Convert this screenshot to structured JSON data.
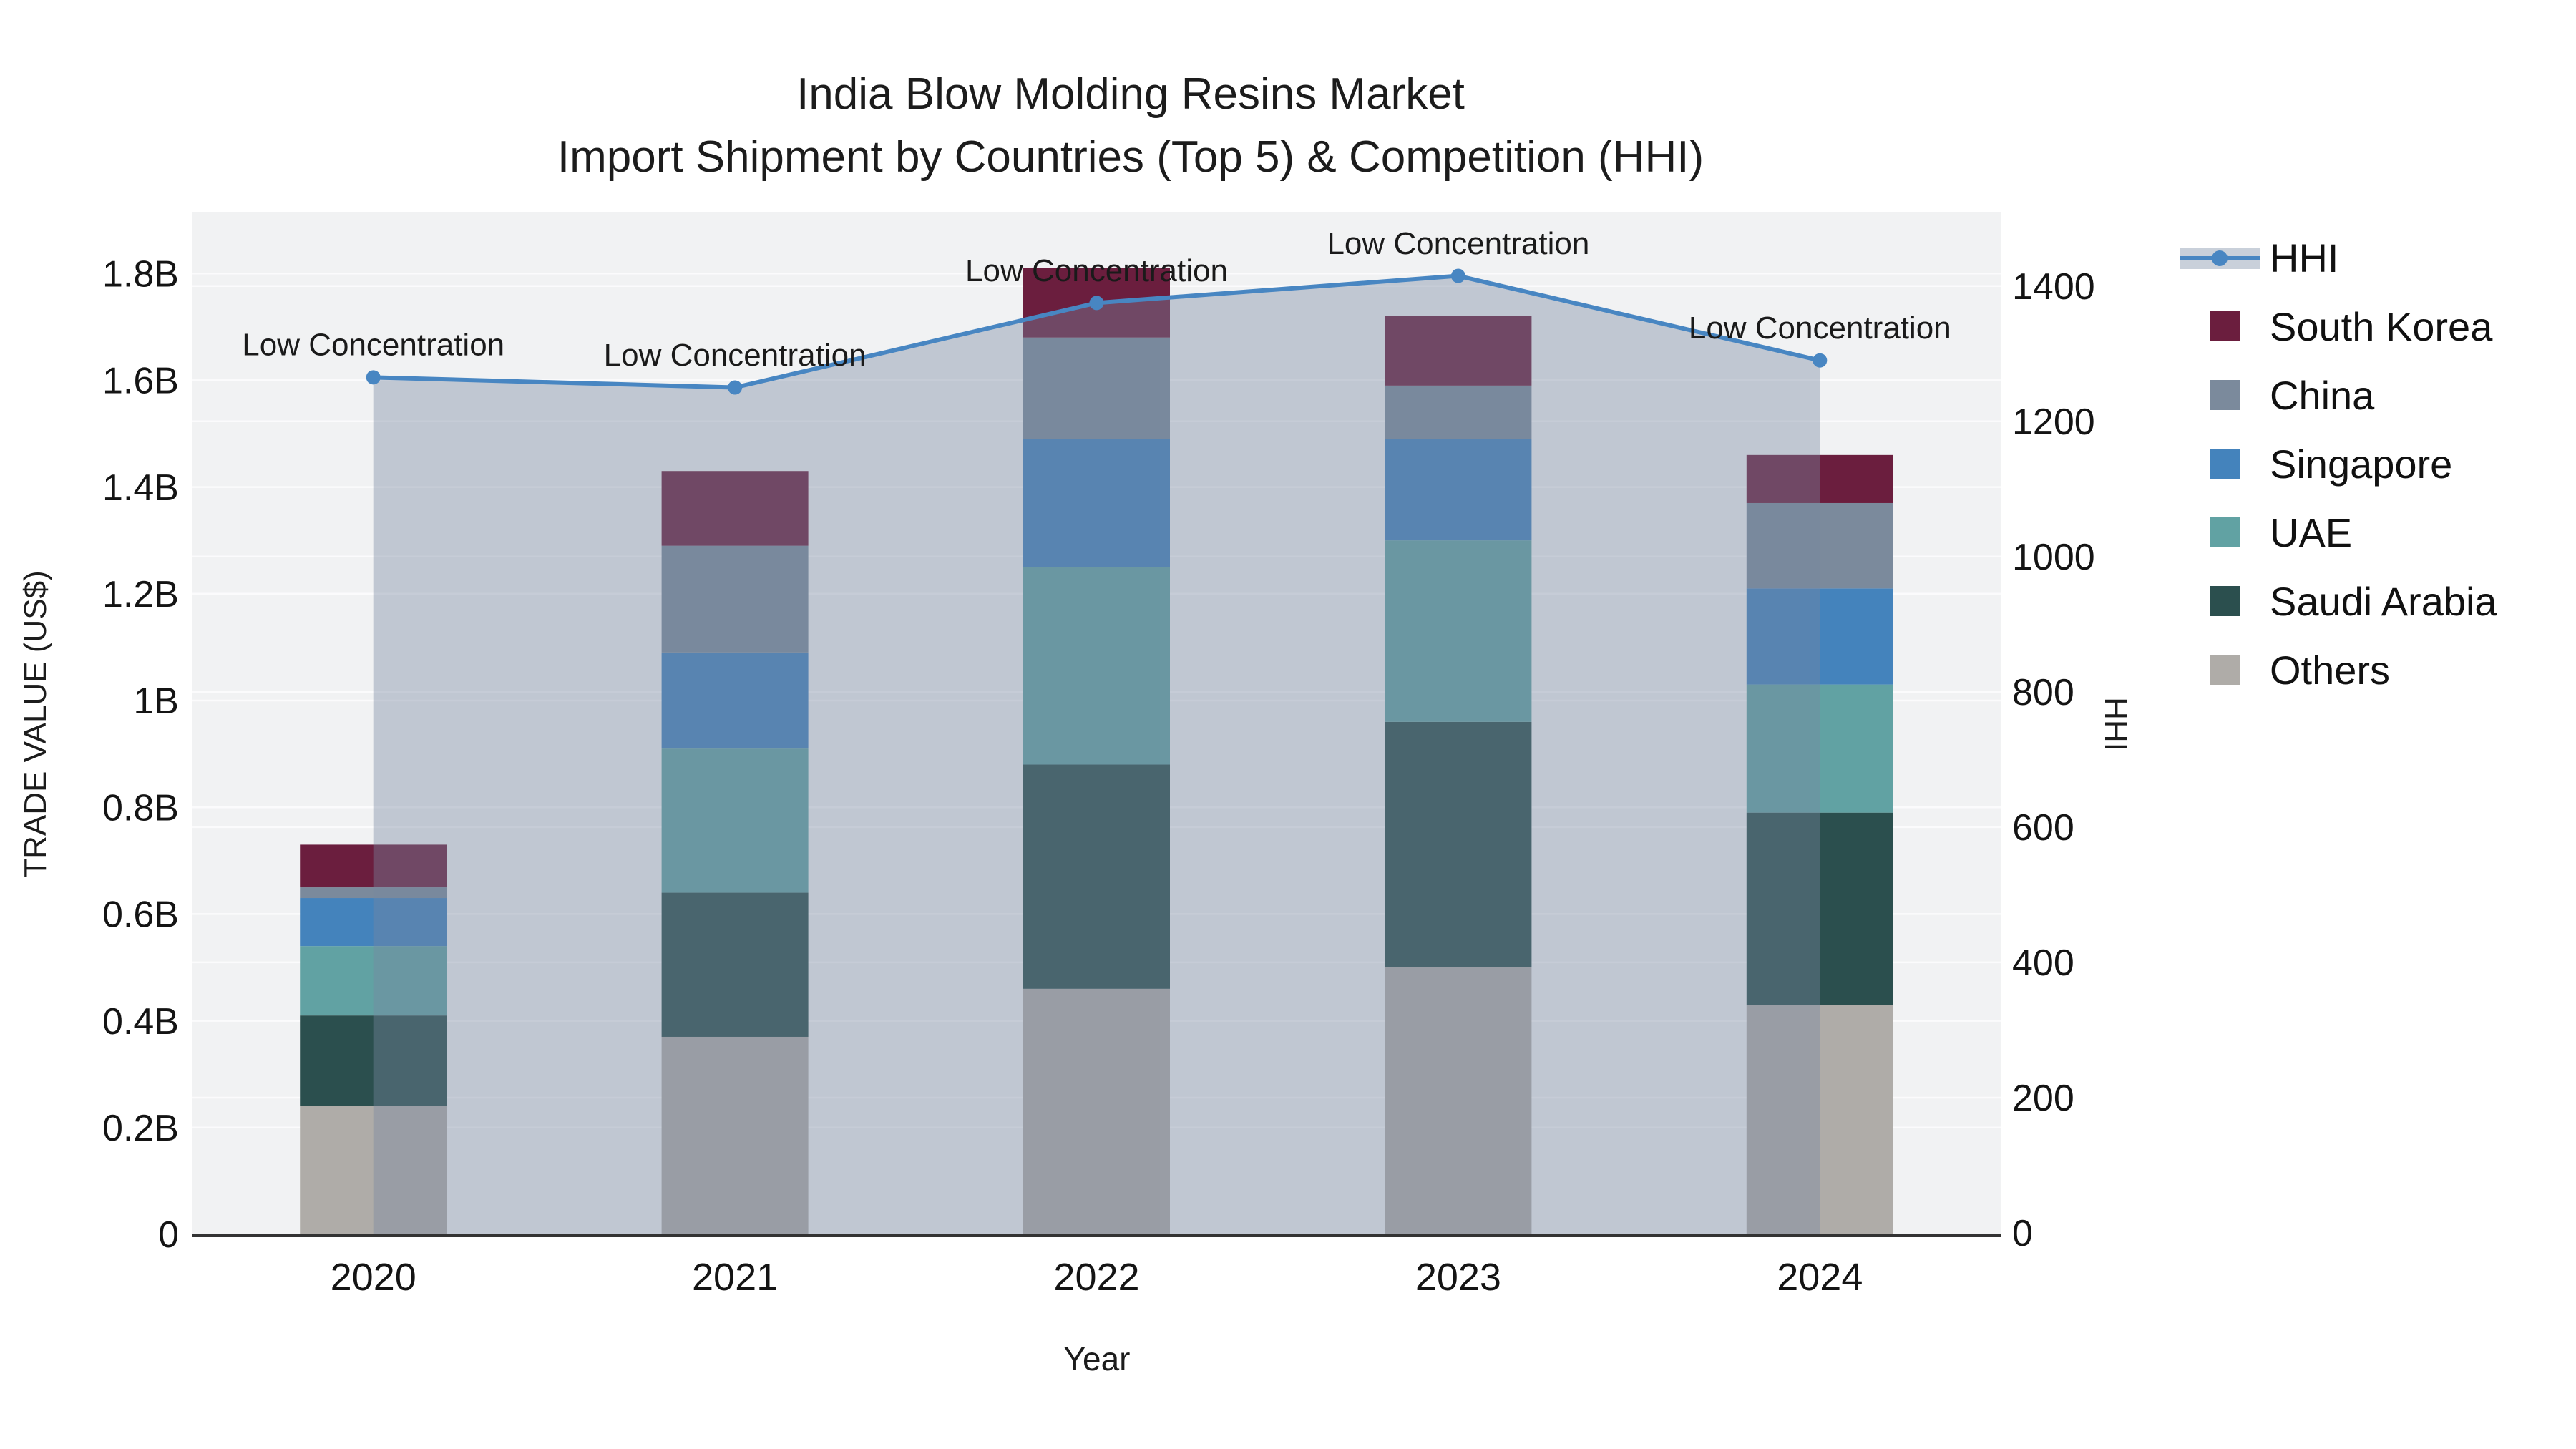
{
  "title": {
    "line1": "India Blow Molding Resins Market",
    "line2": "Import Shipment by Countries (Top 5) & Competition (HHI)"
  },
  "axes": {
    "y_title": "TRADE VALUE (US$)",
    "y2_title": "HHI",
    "x_title": "Year"
  },
  "legend": {
    "items": [
      {
        "label": "HHI",
        "type": "line",
        "color": "#4886C2",
        "band_color": "#c9d0da"
      },
      {
        "label": "South Korea",
        "type": "swatch",
        "color": "#6B1E3E"
      },
      {
        "label": "China",
        "type": "swatch",
        "color": "#7B8A9C"
      },
      {
        "label": "Singapore",
        "type": "swatch",
        "color": "#4483BC"
      },
      {
        "label": "UAE",
        "type": "swatch",
        "color": "#61A2A3"
      },
      {
        "label": "Saudi Arabia",
        "type": "swatch",
        "color": "#2B4F4E"
      },
      {
        "label": "Others",
        "type": "swatch",
        "color": "#AFACA8"
      }
    ]
  },
  "chart_data": {
    "type": "bar",
    "subtype": "stacked-bars-with-line-area",
    "title": "India Blow Molding Resins Market — Import Shipment by Countries (Top 5) & Competition (HHI)",
    "categories": [
      "2020",
      "2021",
      "2022",
      "2023",
      "2024"
    ],
    "series": [
      {
        "name": "Others",
        "color": "#AFACA8",
        "values": [
          0.24,
          0.37,
          0.46,
          0.5,
          0.43
        ]
      },
      {
        "name": "Saudi Arabia",
        "color": "#2B4F4E",
        "values": [
          0.17,
          0.27,
          0.42,
          0.46,
          0.36
        ]
      },
      {
        "name": "UAE",
        "color": "#61A2A3",
        "values": [
          0.13,
          0.27,
          0.37,
          0.34,
          0.24
        ]
      },
      {
        "name": "Singapore",
        "color": "#4483BC",
        "values": [
          0.09,
          0.18,
          0.24,
          0.19,
          0.18
        ]
      },
      {
        "name": "China",
        "color": "#7B8A9C",
        "values": [
          0.02,
          0.2,
          0.19,
          0.1,
          0.16
        ]
      },
      {
        "name": "South Korea",
        "color": "#6B1E3E",
        "values": [
          0.08,
          0.14,
          0.13,
          0.13,
          0.09
        ]
      }
    ],
    "bar_totals_billion": [
      0.73,
      1.43,
      1.81,
      1.72,
      1.46
    ],
    "line_series": {
      "name": "HHI",
      "values": [
        1265,
        1250,
        1375,
        1415,
        1290
      ],
      "color": "#4886C2",
      "area_fill": "rgba(119,136,160,0.40)",
      "markers": true
    },
    "annotations": [
      {
        "x": "2020",
        "text": "Low Concentration"
      },
      {
        "x": "2021",
        "text": "Low Concentration"
      },
      {
        "x": "2022",
        "text": "Low Concentration"
      },
      {
        "x": "2023",
        "text": "Low Concentration"
      },
      {
        "x": "2024",
        "text": "Low Concentration"
      }
    ],
    "y_axis": {
      "title": "TRADE VALUE (US$)",
      "unit": "billion US$",
      "tick_labels": [
        "0",
        "0.2B",
        "0.4B",
        "0.6B",
        "0.8B",
        "1B",
        "1.2B",
        "1.4B",
        "1.6B",
        "1.8B"
      ],
      "tick_values": [
        0,
        0.2,
        0.4,
        0.6,
        0.8,
        1.0,
        1.2,
        1.4,
        1.6,
        1.8
      ],
      "range": [
        0,
        1.92
      ]
    },
    "y2_axis": {
      "title": "HHI",
      "tick_labels": [
        "0",
        "200",
        "400",
        "600",
        "800",
        "1000",
        "1200",
        "1400"
      ],
      "tick_values": [
        0,
        200,
        400,
        600,
        800,
        1000,
        1200,
        1400
      ],
      "range": [
        0,
        1510
      ]
    },
    "x_axis": {
      "title": "Year"
    },
    "legend_position": "right",
    "grid": true,
    "plot_bg": "#F1F2F3",
    "grid_color": "#FBFBFC",
    "axisline_color": "#333333",
    "annotation_color": "#1a1a1a"
  }
}
